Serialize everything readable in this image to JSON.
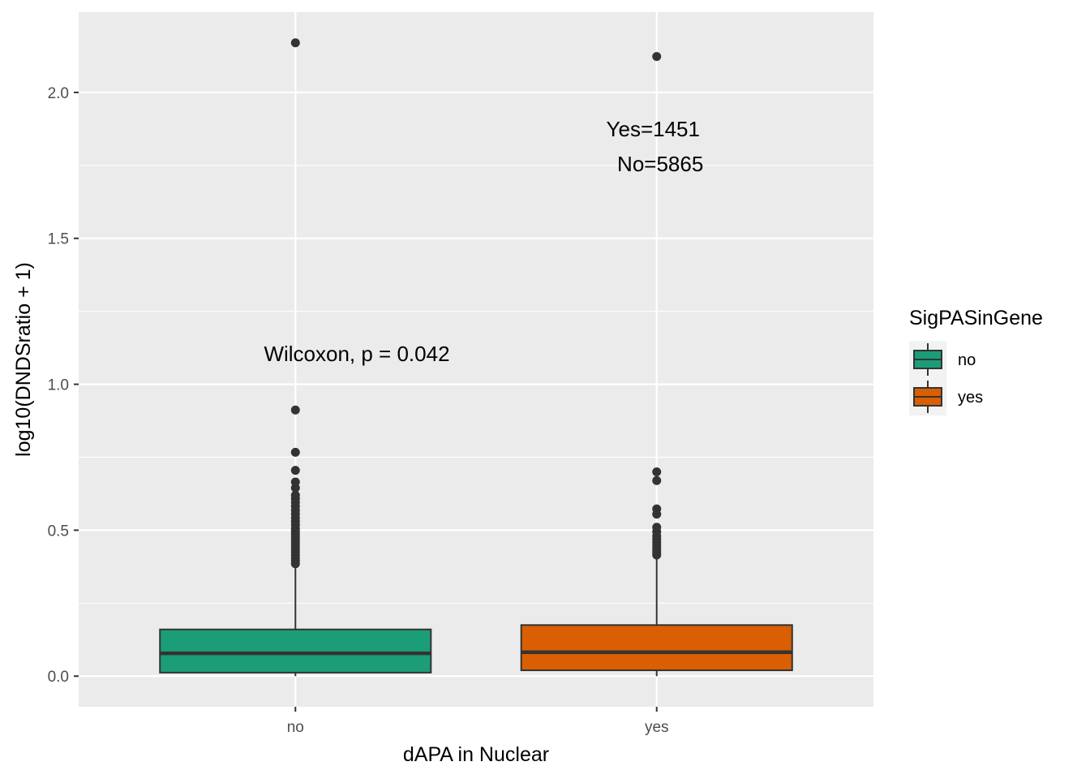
{
  "chart_data": {
    "type": "boxplot",
    "xlabel": "dAPA in Nuclear",
    "ylabel": "log10(DNDSratio + 1)",
    "categories": [
      "no",
      "yes"
    ],
    "ylim": [
      -0.105,
      2.275
    ],
    "yticks": [
      0.0,
      0.5,
      1.0,
      1.5,
      2.0
    ],
    "ytick_labels": [
      "0.0",
      "0.5",
      "1.0",
      "1.5",
      "2.0"
    ],
    "grid": true,
    "legend": {
      "title": "SigPASinGene",
      "position": "right",
      "entries": [
        {
          "label": "no",
          "color": "#1b9e77"
        },
        {
          "label": "yes",
          "color": "#d95f02"
        }
      ]
    },
    "boxes": [
      {
        "category": "no",
        "fill": "#1b9e77",
        "whisker_low": 0.0,
        "q1": 0.012,
        "median": 0.078,
        "q3": 0.16,
        "whisker_high": 0.375,
        "outliers": [
          2.17,
          0.912,
          0.767,
          0.705,
          0.665,
          0.645,
          0.62,
          0.608,
          0.595,
          0.582,
          0.568,
          0.555,
          0.542,
          0.53,
          0.518,
          0.505,
          0.495,
          0.485,
          0.475,
          0.465,
          0.455,
          0.445,
          0.435,
          0.425,
          0.415,
          0.405,
          0.395,
          0.385
        ]
      },
      {
        "category": "yes",
        "fill": "#d95f02",
        "whisker_low": 0.0,
        "q1": 0.02,
        "median": 0.082,
        "q3": 0.175,
        "whisker_high": 0.41,
        "outliers": [
          2.123,
          0.7,
          0.67,
          0.573,
          0.555,
          0.51,
          0.495,
          0.48,
          0.468,
          0.458,
          0.448,
          0.438,
          0.43,
          0.422,
          0.415
        ]
      }
    ],
    "annotations": [
      {
        "text": "Wilcoxon, p = 0.042",
        "x": 1.17,
        "y": 1.08
      },
      {
        "text": "Yes=1451",
        "x": 1.99,
        "y": 1.85
      },
      {
        "text": "No=5865",
        "x": 2.01,
        "y": 1.73
      }
    ],
    "colors": {
      "panel_background": "#ebebeb",
      "grid": "#ffffff",
      "box_outline": "#333333"
    }
  }
}
